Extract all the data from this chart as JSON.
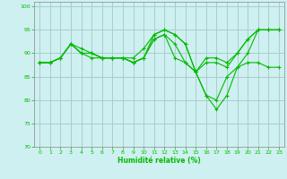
{
  "xlabel": "Humidité relative (%)",
  "background_color": "#cff0f0",
  "grid_color": "#aacccc",
  "line_color": "#00bb00",
  "xlim": [
    -0.5,
    23.5
  ],
  "ylim": [
    70,
    101
  ],
  "yticks": [
    70,
    75,
    80,
    85,
    90,
    95,
    100
  ],
  "xticks": [
    0,
    1,
    2,
    3,
    4,
    5,
    6,
    7,
    8,
    9,
    10,
    11,
    12,
    13,
    14,
    15,
    16,
    17,
    18,
    19,
    20,
    21,
    22,
    23
  ],
  "series": [
    [
      88,
      88,
      89,
      92,
      91,
      90,
      89,
      89,
      89,
      89,
      91,
      94,
      95,
      94,
      92,
      86,
      88,
      88,
      87,
      90,
      93,
      95,
      95,
      95
    ],
    [
      88,
      88,
      89,
      92,
      90,
      90,
      89,
      89,
      89,
      88,
      89,
      94,
      95,
      94,
      92,
      86,
      89,
      89,
      88,
      90,
      93,
      95,
      95,
      95
    ],
    [
      88,
      88,
      89,
      92,
      90,
      90,
      89,
      89,
      89,
      88,
      89,
      93,
      94,
      92,
      88,
      86,
      81,
      80,
      85,
      87,
      88,
      88,
      87,
      87
    ],
    [
      88,
      88,
      89,
      92,
      90,
      89,
      89,
      89,
      89,
      88,
      89,
      93,
      94,
      89,
      88,
      86,
      81,
      78,
      81,
      87,
      90,
      95,
      95,
      95
    ]
  ]
}
